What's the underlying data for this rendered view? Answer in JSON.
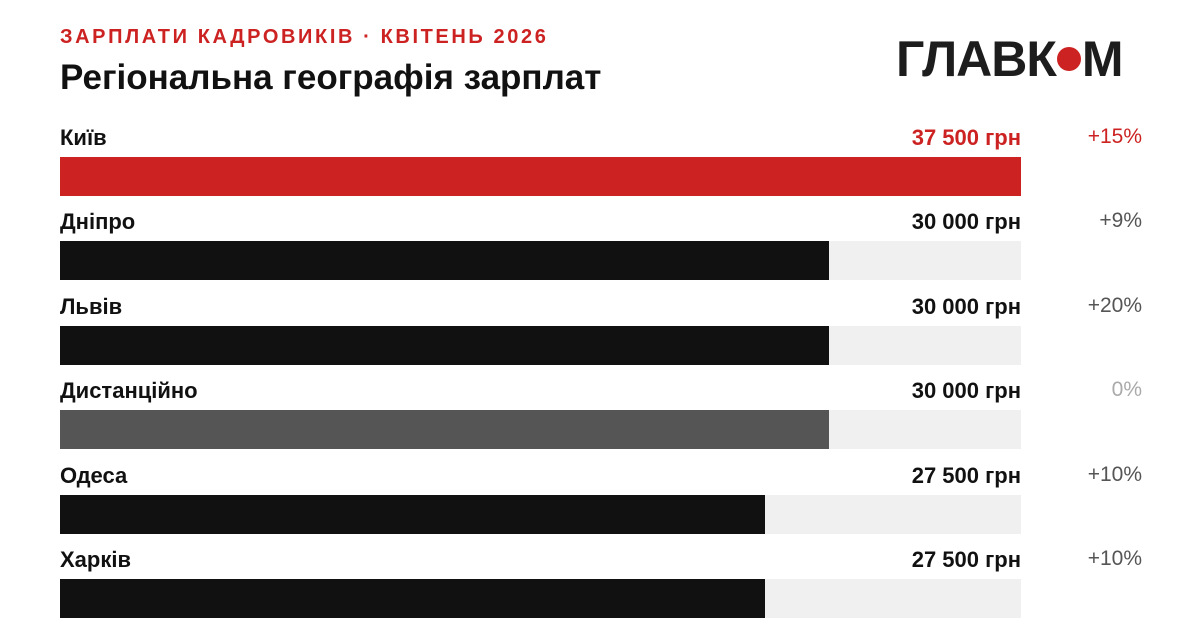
{
  "header": {
    "kicker": "ЗАРПЛАТИ КАДРОВИКІВ · КВІТЕНЬ 2026",
    "title": "Регіональна географія зарплат"
  },
  "logo": {
    "text_before": "ГЛАВК",
    "text_after": "М"
  },
  "colors": {
    "accent": "#cc2222",
    "bar_default": "#111111",
    "bar_remote": "#555555",
    "track": "#f0f0f0",
    "change_default": "#555555",
    "change_zero": "#aaaaaa"
  },
  "chart_data": {
    "type": "bar",
    "orientation": "horizontal",
    "xlim": [
      0,
      37500
    ],
    "categories": [
      "Київ",
      "Дніпро",
      "Львів",
      "Дистанційно",
      "Одеса",
      "Харків"
    ],
    "values": [
      37500,
      30000,
      30000,
      30000,
      27500,
      27500
    ],
    "value_labels": [
      "37 500 грн",
      "30 000 грн",
      "30 000 грн",
      "30 000 грн",
      "27 500 грн",
      "27 500 грн"
    ],
    "changes": [
      "+15%",
      "+9%",
      "+20%",
      "0%",
      "+10%",
      "+10%"
    ],
    "bar_colors": [
      "#cc2222",
      "#111111",
      "#111111",
      "#555555",
      "#111111",
      "#111111"
    ],
    "value_colors": [
      "#cc2222",
      "#111111",
      "#111111",
      "#111111",
      "#111111",
      "#111111"
    ],
    "change_colors": [
      "#cc2222",
      "#555555",
      "#555555",
      "#aaaaaa",
      "#555555",
      "#555555"
    ]
  }
}
